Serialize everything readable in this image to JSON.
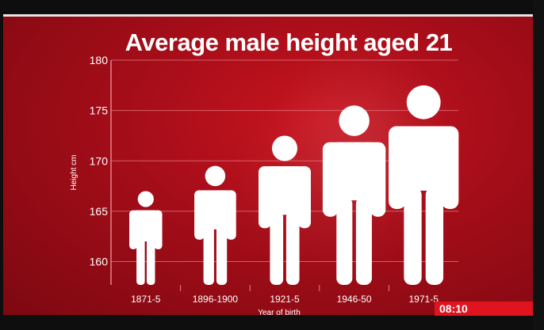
{
  "broadcast": {
    "clock": "08:10"
  },
  "colors": {
    "background": "#b01019",
    "figures": "#ffffff",
    "grid": "#e87a80",
    "clock_bar": "#e0141f"
  },
  "chart_data": {
    "type": "bar",
    "mark_style": "human-figure-icons",
    "title": "Average male height aged 21",
    "ylabel": "Height cm",
    "xlabel": "Year of birth",
    "categories": [
      "1871-5",
      "1896-1900",
      "1921-5",
      "1946-50",
      "1971-5"
    ],
    "values": [
      167,
      169.5,
      172.5,
      175.5,
      177.5
    ],
    "ylim": [
      158,
      180
    ],
    "yticks": [
      160,
      165,
      170,
      175,
      180
    ],
    "grid": true,
    "legend": "none"
  }
}
